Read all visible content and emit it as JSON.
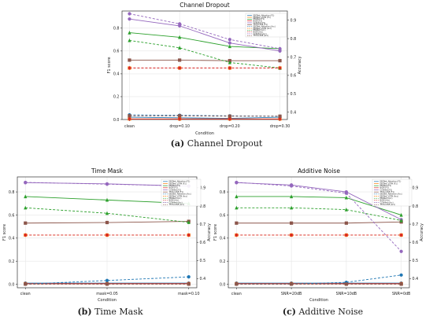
{
  "captions": {
    "a_letter": "(a)",
    "a_text": "Channel Dropout",
    "b_letter": "(b)",
    "b_text": "Time Mask",
    "c_letter": "(c)",
    "c_text": "Additive Noise"
  },
  "chart_data": [
    {
      "type": "line",
      "title": "Channel Dropout",
      "xlabel": "Condition",
      "ylabel": "F1 score",
      "ylabel_right": "Accuracy",
      "categories": [
        "clean",
        "drop=0.10",
        "drop=0.20",
        "drop=0.30"
      ],
      "ylim": [
        0.0,
        0.95
      ],
      "yticks": [
        0.0,
        0.2,
        0.4,
        0.6,
        0.8
      ],
      "ylim_right": [
        0.36,
        0.95
      ],
      "yticks_right": [
        0.4,
        0.5,
        0.6,
        0.7,
        0.8,
        0.9
      ],
      "grid": true,
      "legend_position": "top-right",
      "series": [
        {
          "name": "EEGNet_Attention (F1)",
          "axis": "left",
          "color": "#1f77b4",
          "dash": false,
          "marker": "circle",
          "values": [
            0.02,
            0.015,
            0.01,
            0.02
          ]
        },
        {
          "name": "EEGNet_LSTM (F1)",
          "axis": "left",
          "color": "#ff7f0e",
          "dash": false,
          "marker": "square",
          "values": [
            0.005,
            0.005,
            0.005,
            0.005
          ]
        },
        {
          "name": "EEGNet (F1)",
          "axis": "left",
          "color": "#2ca02c",
          "dash": false,
          "marker": "triangle",
          "values": [
            0.76,
            0.72,
            0.64,
            0.62
          ]
        },
        {
          "name": "BiGN (F1)",
          "axis": "left",
          "color": "#d62728",
          "dash": false,
          "marker": "diamond",
          "values": [
            0.005,
            0.005,
            0.005,
            0.005
          ]
        },
        {
          "name": "CCN-Net (F1)",
          "axis": "left",
          "color": "#9467bd",
          "dash": false,
          "marker": "circle",
          "values": [
            0.88,
            0.82,
            0.67,
            0.6
          ]
        },
        {
          "name": "TFCS-LSSE (F1)",
          "axis": "left",
          "color": "#8c564b",
          "dash": false,
          "marker": "square",
          "values": [
            0.52,
            0.52,
            0.515,
            0.515
          ]
        },
        {
          "name": "EEGNet_Attention (Acc)",
          "axis": "right",
          "color": "#1f77b4",
          "dash": true,
          "marker": "circle",
          "values": [
            0.385,
            0.383,
            0.38,
            0.378
          ]
        },
        {
          "name": "EEGNet_LSTM (Acc)",
          "axis": "right",
          "color": "#ff7f0e",
          "dash": true,
          "marker": "square",
          "values": [
            0.64,
            0.64,
            0.64,
            0.64
          ]
        },
        {
          "name": "EEGNet (Acc)",
          "axis": "right",
          "color": "#2ca02c",
          "dash": true,
          "marker": "triangle",
          "values": [
            0.79,
            0.75,
            0.67,
            0.64
          ]
        },
        {
          "name": "BiGN (Acc)",
          "axis": "right",
          "color": "#d62728",
          "dash": true,
          "marker": "diamond",
          "values": [
            0.64,
            0.64,
            0.64,
            0.64
          ]
        },
        {
          "name": "CCN-Net (Acc)",
          "axis": "right",
          "color": "#9467bd",
          "dash": true,
          "marker": "circle",
          "values": [
            0.935,
            0.88,
            0.795,
            0.745
          ]
        },
        {
          "name": "TFCS-LSSE (Acc)",
          "axis": "right",
          "color": "#8c564b",
          "dash": true,
          "marker": "square",
          "values": [
            0.38,
            0.38,
            0.378,
            0.378
          ]
        }
      ]
    },
    {
      "type": "line",
      "title": "Time Mask",
      "xlabel": "Condition",
      "ylabel": "F1 score",
      "ylabel_right": "Accuracy",
      "categories": [
        "clean",
        "mask=0.05",
        "mask=0.10"
      ],
      "ylim": [
        -0.03,
        0.93
      ],
      "yticks": [
        0.0,
        0.2,
        0.4,
        0.6,
        0.8
      ],
      "ylim_right": [
        0.35,
        0.96
      ],
      "yticks_right": [
        0.4,
        0.5,
        0.6,
        0.7,
        0.8,
        0.9
      ],
      "grid": true,
      "legend_position": "top-right",
      "series": [
        {
          "name": "EEGNet_Attention (F1)",
          "axis": "left",
          "color": "#1f77b4",
          "dash": false,
          "marker": "circle",
          "values": [
            0.01,
            0.01,
            0.01
          ]
        },
        {
          "name": "EEGNet_LSTM (F1)",
          "axis": "left",
          "color": "#ff7f0e",
          "dash": false,
          "marker": "square",
          "values": [
            0.005,
            0.005,
            0.005
          ]
        },
        {
          "name": "EEGNet (F1)",
          "axis": "left",
          "color": "#2ca02c",
          "dash": false,
          "marker": "triangle",
          "values": [
            0.76,
            0.73,
            0.7
          ]
        },
        {
          "name": "BiGN (F1)",
          "axis": "left",
          "color": "#d62728",
          "dash": false,
          "marker": "diamond",
          "values": [
            0.005,
            0.005,
            0.005
          ]
        },
        {
          "name": "CCN-Net (F1)",
          "axis": "left",
          "color": "#9467bd",
          "dash": false,
          "marker": "circle",
          "values": [
            0.88,
            0.87,
            0.85
          ]
        },
        {
          "name": "TFCS-LSSE (F1)",
          "axis": "left",
          "color": "#8c564b",
          "dash": false,
          "marker": "square",
          "values": [
            0.53,
            0.535,
            0.545
          ]
        },
        {
          "name": "EEGNet_Attention (Acc)",
          "axis": "right",
          "color": "#1f77b4",
          "dash": true,
          "marker": "circle",
          "values": [
            0.37,
            0.39,
            0.41
          ]
        },
        {
          "name": "EEGNet_LSTM (Acc)",
          "axis": "right",
          "color": "#ff7f0e",
          "dash": true,
          "marker": "square",
          "values": [
            0.64,
            0.64,
            0.64
          ]
        },
        {
          "name": "EEGNet (Acc)",
          "axis": "right",
          "color": "#2ca02c",
          "dash": true,
          "marker": "triangle",
          "values": [
            0.79,
            0.76,
            0.71
          ]
        },
        {
          "name": "BiGN (Acc)",
          "axis": "right",
          "color": "#d62728",
          "dash": true,
          "marker": "diamond",
          "values": [
            0.64,
            0.64,
            0.64
          ]
        },
        {
          "name": "CCN-Net (Acc)",
          "axis": "right",
          "color": "#9467bd",
          "dash": true,
          "marker": "circle",
          "values": [
            0.93,
            0.92,
            0.91
          ]
        },
        {
          "name": "TFCS-LSSE (Acc)",
          "axis": "right",
          "color": "#8c564b",
          "dash": true,
          "marker": "square",
          "values": [
            0.37,
            0.37,
            0.37
          ]
        }
      ]
    },
    {
      "type": "line",
      "title": "Additive Noise",
      "xlabel": "Condition",
      "ylabel": "F1 score",
      "ylabel_right": "Accuracy",
      "categories": [
        "clean",
        "SNR=20dB",
        "SNR=10dB",
        "SNR=0dB"
      ],
      "ylim": [
        -0.03,
        0.93
      ],
      "yticks": [
        0.0,
        0.2,
        0.4,
        0.6,
        0.8
      ],
      "ylim_right": [
        0.35,
        0.96
      ],
      "yticks_right": [
        0.4,
        0.5,
        0.6,
        0.7,
        0.8,
        0.9
      ],
      "grid": true,
      "legend_position": "top-right",
      "series": [
        {
          "name": "EEGNet_Attention (F1)",
          "axis": "left",
          "color": "#1f77b4",
          "dash": false,
          "marker": "circle",
          "values": [
            0.01,
            0.01,
            0.01,
            0.01
          ]
        },
        {
          "name": "EEGNet_LSTM (F1)",
          "axis": "left",
          "color": "#ff7f0e",
          "dash": false,
          "marker": "square",
          "values": [
            0.005,
            0.005,
            0.005,
            0.005
          ]
        },
        {
          "name": "EEGNet (F1)",
          "axis": "left",
          "color": "#2ca02c",
          "dash": false,
          "marker": "triangle",
          "values": [
            0.76,
            0.76,
            0.75,
            0.6
          ]
        },
        {
          "name": "BiGN (F1)",
          "axis": "left",
          "color": "#d62728",
          "dash": false,
          "marker": "diamond",
          "values": [
            0.005,
            0.005,
            0.005,
            0.005
          ]
        },
        {
          "name": "CCN-Net (F1)",
          "axis": "left",
          "color": "#9467bd",
          "dash": false,
          "marker": "circle",
          "values": [
            0.88,
            0.86,
            0.8,
            0.56
          ]
        },
        {
          "name": "TFCS-LSSE (F1)",
          "axis": "left",
          "color": "#8c564b",
          "dash": false,
          "marker": "square",
          "values": [
            0.53,
            0.53,
            0.53,
            0.54
          ]
        },
        {
          "name": "EEGNet_Attention (Acc)",
          "axis": "right",
          "color": "#1f77b4",
          "dash": true,
          "marker": "circle",
          "values": [
            0.37,
            0.37,
            0.38,
            0.42
          ]
        },
        {
          "name": "EEGNet_LSTM (Acc)",
          "axis": "right",
          "color": "#ff7f0e",
          "dash": true,
          "marker": "square",
          "values": [
            0.64,
            0.64,
            0.64,
            0.64
          ]
        },
        {
          "name": "EEGNet (Acc)",
          "axis": "right",
          "color": "#2ca02c",
          "dash": true,
          "marker": "triangle",
          "values": [
            0.79,
            0.79,
            0.78,
            0.72
          ]
        },
        {
          "name": "BiGN (Acc)",
          "axis": "right",
          "color": "#d62728",
          "dash": true,
          "marker": "diamond",
          "values": [
            0.64,
            0.64,
            0.64,
            0.64
          ]
        },
        {
          "name": "CCN-Net (Acc)",
          "axis": "right",
          "color": "#9467bd",
          "dash": true,
          "marker": "circle",
          "values": [
            0.93,
            0.91,
            0.87,
            0.55
          ]
        },
        {
          "name": "TFCS-LSSE (Acc)",
          "axis": "right",
          "color": "#8c564b",
          "dash": true,
          "marker": "square",
          "values": [
            0.37,
            0.37,
            0.37,
            0.37
          ]
        }
      ]
    }
  ]
}
